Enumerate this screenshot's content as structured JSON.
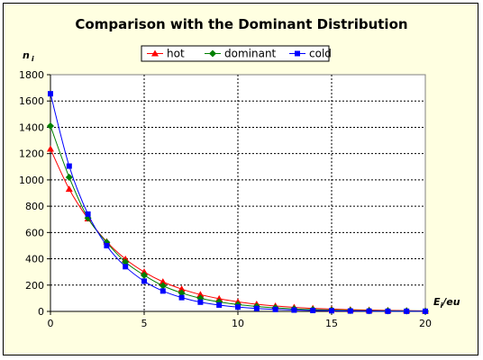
{
  "chart_data": {
    "type": "line",
    "title": "Comparison with the Dominant Distribution",
    "ylabel": {
      "main": "n",
      "sub": "i"
    },
    "xlabel": {
      "main": "E",
      "sub": "i",
      "suffix": "/eu"
    },
    "xlim": [
      0,
      20
    ],
    "ylim": [
      0,
      1800
    ],
    "xticks": [
      0,
      5,
      10,
      15,
      20
    ],
    "yticks": [
      0,
      200,
      400,
      600,
      800,
      1000,
      1200,
      1400,
      1600,
      1800
    ],
    "grid": true,
    "legend": "top-center",
    "x": [
      0,
      1,
      2,
      3,
      4,
      5,
      6,
      7,
      8,
      9,
      10,
      11,
      12,
      13,
      14,
      15,
      16,
      17,
      18,
      19,
      20
    ],
    "series": [
      {
        "name": "hot",
        "color": "#ff0000",
        "marker": "triangle",
        "values": [
          1235,
          930,
          705,
          530,
          398,
          300,
          225,
          170,
          128,
          97,
          73,
          55,
          41,
          31,
          23,
          18,
          13,
          10,
          8,
          6,
          4
        ]
      },
      {
        "name": "dominant",
        "color": "#008000",
        "marker": "diamond",
        "values": [
          1410,
          1020,
          710,
          525,
          375,
          275,
          195,
          140,
          100,
          72,
          52,
          38,
          27,
          19,
          14,
          10,
          7,
          5,
          4,
          3,
          2
        ]
      },
      {
        "name": "cold",
        "color": "#0000ff",
        "marker": "square",
        "values": [
          1655,
          1105,
          740,
          500,
          340,
          230,
          155,
          105,
          70,
          48,
          33,
          22,
          15,
          10,
          7,
          5,
          3,
          2,
          1,
          1,
          1
        ]
      }
    ]
  }
}
